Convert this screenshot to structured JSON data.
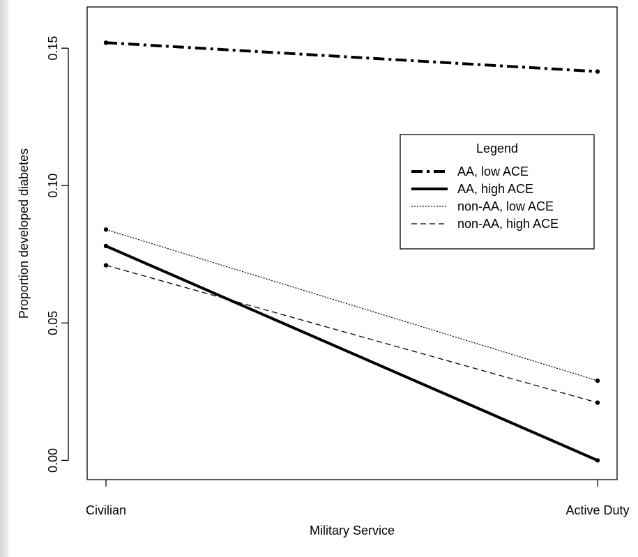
{
  "chart_data": {
    "type": "line",
    "title": "",
    "xlabel": "Military Service",
    "ylabel": "Proportion developed diabetes",
    "categories": [
      "Civilian",
      "Active Duty"
    ],
    "ylim": [
      -0.007,
      0.165
    ],
    "yticks": [
      "0.00",
      "0.05",
      "0.10",
      "0.15"
    ],
    "ytick_values": [
      0.0,
      0.05,
      0.1,
      0.15
    ],
    "grid": false,
    "legend": {
      "title": "Legend",
      "placement": "right",
      "entries": [
        "AA, low ACE",
        "AA, high ACE",
        "non-AA, low ACE",
        "non-AA, high ACE"
      ]
    },
    "series": [
      {
        "name": "AA, low ACE",
        "values": [
          0.152,
          0.1415
        ],
        "line_style": "dashdot-thick"
      },
      {
        "name": "AA, high ACE",
        "values": [
          0.078,
          0.0
        ],
        "line_style": "solid-thick"
      },
      {
        "name": "non-AA, low ACE",
        "values": [
          0.084,
          0.029
        ],
        "line_style": "dotted"
      },
      {
        "name": "non-AA, high ACE",
        "values": [
          0.071,
          0.021
        ],
        "line_style": "dashed"
      }
    ],
    "colors": {
      "line": "#000000",
      "background": "#ffffff"
    }
  }
}
